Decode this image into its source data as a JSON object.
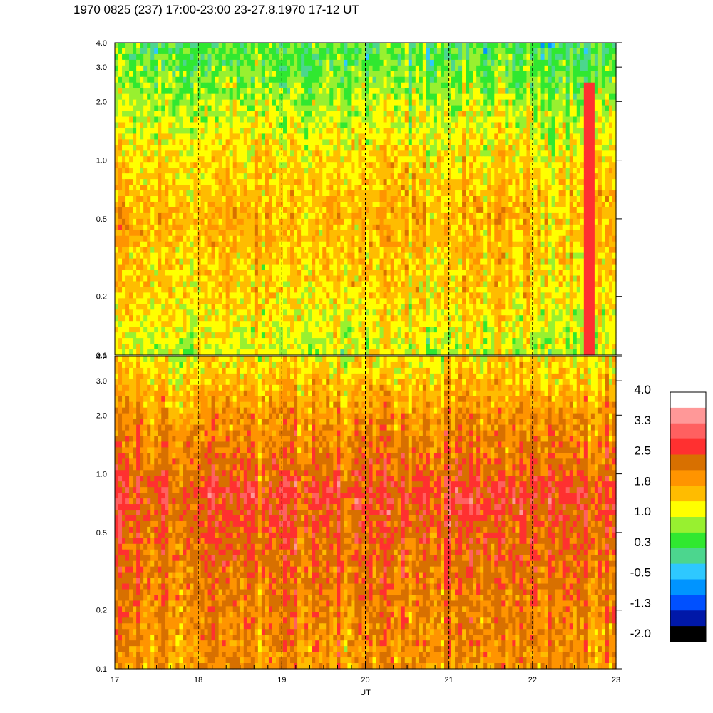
{
  "title": "1970 0825 (237) 17:00-23:00 23-27.8.1970  17-12 UT",
  "colors": {
    "scale": [
      "#000000",
      "#0018a8",
      "#0050ff",
      "#0094ff",
      "#2ec8ff",
      "#4cd68e",
      "#30e830",
      "#98f030",
      "#ffff00",
      "#ffbc00",
      "#ff9400",
      "#d87000",
      "#ff3030",
      "#ff6060",
      "#ff9898",
      "#ffffff"
    ]
  },
  "chart_data": [
    {
      "type": "heatmap",
      "panel": "upper",
      "x": [
        17,
        18,
        19,
        20,
        21,
        22,
        23
      ],
      "xlim": [
        17,
        23
      ],
      "ylim": [
        0.1,
        4.0
      ],
      "yscale": "log",
      "yticks": [
        "4.0",
        "3.0",
        "2.0",
        "1.0",
        "0.5",
        "0.2",
        "0.1"
      ],
      "dashed_vlines": [
        18,
        19,
        20,
        21,
        22
      ],
      "profile": [
        {
          "y": 0.1,
          "level": 1.0
        },
        {
          "y": 0.2,
          "level": 1.4
        },
        {
          "y": 0.5,
          "level": 1.7
        },
        {
          "y": 1.0,
          "level": 1.4
        },
        {
          "y": 2.0,
          "level": 0.9
        },
        {
          "y": 3.0,
          "level": 0.5
        },
        {
          "y": 4.0,
          "level": 0.4
        }
      ],
      "annotations": [
        {
          "x": 22.68,
          "label": "red vertical burst"
        }
      ]
    },
    {
      "type": "heatmap",
      "panel": "lower",
      "x": [
        17,
        18,
        19,
        20,
        21,
        22,
        23
      ],
      "xlim": [
        17,
        23
      ],
      "ylim": [
        0.1,
        4.0
      ],
      "yscale": "log",
      "yticks": [
        "4.0",
        "3.0",
        "2.0",
        "1.0",
        "0.5",
        "0.2",
        "0.1"
      ],
      "xticks": [
        "17",
        "18",
        "19",
        "20",
        "21",
        "22",
        "23"
      ],
      "xlabel": "UT",
      "dashed_vlines": [
        18,
        19,
        20,
        21,
        22
      ],
      "profile": [
        {
          "y": 0.1,
          "level": 2.0
        },
        {
          "y": 0.2,
          "level": 2.2
        },
        {
          "y": 0.5,
          "level": 2.5
        },
        {
          "y": 0.8,
          "level": 2.75
        },
        {
          "y": 1.0,
          "level": 2.45
        },
        {
          "y": 2.0,
          "level": 2.0
        },
        {
          "y": 3.0,
          "level": 1.6
        },
        {
          "y": 4.0,
          "level": 1.3
        }
      ]
    },
    {
      "type": "colorbar",
      "labels": [
        "4.0",
        "3.3",
        "2.5",
        "1.8",
        "1.0",
        "0.3",
        "-0.5",
        "-1.3",
        "-2.0"
      ]
    }
  ]
}
